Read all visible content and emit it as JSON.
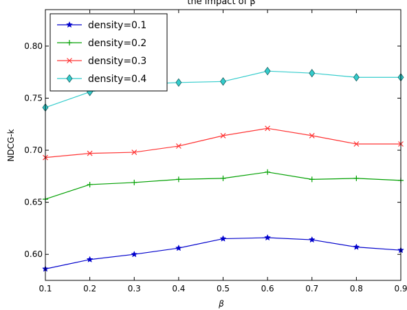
{
  "chart_data": {
    "type": "line",
    "title": "the impact of β",
    "xlabel": "β",
    "ylabel": "NDCG-k",
    "x": [
      0.1,
      0.2,
      0.3,
      0.4,
      0.5,
      0.6,
      0.7,
      0.8,
      0.9
    ],
    "xlim": [
      0.1,
      0.9
    ],
    "ylim": [
      0.575,
      0.835
    ],
    "xticks": [
      "0.1",
      "0.2",
      "0.3",
      "0.4",
      "0.5",
      "0.6",
      "0.7",
      "0.8",
      "0.9"
    ],
    "yticks": [
      "0.60",
      "0.65",
      "0.70",
      "0.75",
      "0.80"
    ],
    "grid": false,
    "legend_position": "top-left",
    "series": [
      {
        "name": "density=0.1",
        "color": "#0000cc",
        "marker": "star",
        "values": [
          0.586,
          0.595,
          0.6,
          0.606,
          0.615,
          0.616,
          0.614,
          0.607,
          0.604
        ]
      },
      {
        "name": "density=0.2",
        "color": "#00a000",
        "marker": "plus",
        "values": [
          0.653,
          0.667,
          0.669,
          0.672,
          0.673,
          0.679,
          0.672,
          0.673,
          0.671
        ]
      },
      {
        "name": "density=0.3",
        "color": "#ff3333",
        "marker": "x",
        "values": [
          0.693,
          0.697,
          0.698,
          0.704,
          0.714,
          0.721,
          0.714,
          0.706,
          0.706
        ]
      },
      {
        "name": "density=0.4",
        "color": "#33cccc",
        "marker": "diamond",
        "values": [
          0.741,
          0.756,
          0.763,
          0.765,
          0.766,
          0.776,
          0.774,
          0.77,
          0.77
        ]
      }
    ]
  }
}
